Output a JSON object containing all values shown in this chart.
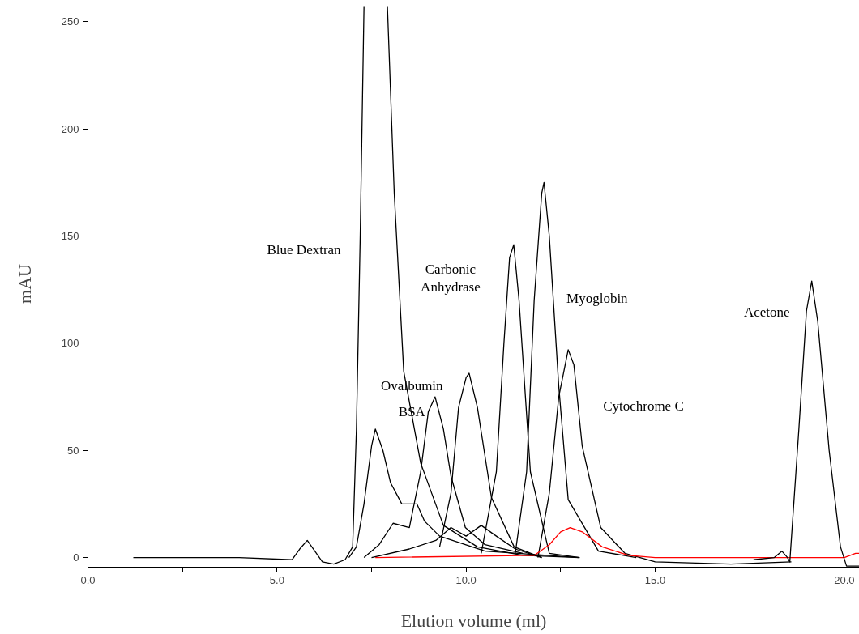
{
  "chart_data": {
    "type": "line",
    "xlabel": "Elution volume (ml)",
    "ylabel": "mAU",
    "xlim": [
      0,
      20.4
    ],
    "ylim": [
      -4.5,
      260
    ],
    "xticks": [
      {
        "value": 0,
        "label": "0.0"
      },
      {
        "value": 2.5,
        "label": null
      },
      {
        "value": 5,
        "label": "5.0"
      },
      {
        "value": 7.5,
        "label": null
      },
      {
        "value": 10,
        "label": "10.0"
      },
      {
        "value": 12.5,
        "label": null
      },
      {
        "value": 15,
        "label": "15.0"
      },
      {
        "value": 17.5,
        "label": null
      },
      {
        "value": 20,
        "label": "20.0"
      }
    ],
    "yticks": [
      0,
      50,
      100,
      150,
      200,
      250
    ],
    "grid": false,
    "marker": "none",
    "line_style": "solid",
    "series": [
      {
        "color": "#000000",
        "x": [
          1.2,
          4.0,
          5.4,
          5.6,
          5.8,
          6.0,
          6.2,
          6.5,
          6.8,
          7.0,
          7.1,
          7.2,
          7.3,
          7.5,
          7.8,
          7.92,
          8.1,
          8.35,
          8.8,
          9.4,
          10.3,
          11.5,
          13.0
        ],
        "values": [
          0,
          0,
          -1,
          4,
          8,
          3,
          -2,
          -3,
          -1,
          5,
          60,
          150,
          257,
          null,
          null,
          257,
          170,
          87,
          44,
          15,
          5,
          1,
          0
        ]
      },
      {
        "color": "#000000",
        "x": [
          6.9,
          7.1,
          7.3,
          7.5,
          7.6,
          7.8,
          8.0,
          8.3,
          8.7,
          8.9,
          9.3,
          10.5,
          13.0
        ],
        "values": [
          0,
          5,
          25,
          52,
          60,
          50,
          35,
          25,
          25,
          17,
          10,
          3,
          0
        ]
      },
      {
        "color": "#000000",
        "x": [
          7.3,
          7.7,
          8.07,
          8.5,
          8.8,
          9.0,
          9.18,
          9.4,
          9.6,
          9.98,
          10.5,
          11.5
        ],
        "values": [
          0,
          6,
          16,
          14,
          40,
          68,
          75,
          60,
          38,
          14,
          6,
          2
        ]
      },
      {
        "color": "#000000",
        "x": [
          9.3,
          9.6,
          9.8,
          10.0,
          10.08,
          10.3,
          10.67,
          11.27,
          12.0
        ],
        "values": [
          5,
          30,
          70,
          84,
          86,
          70,
          28,
          5,
          0
        ]
      },
      {
        "color": "#000000",
        "x": [
          7.5,
          8.5,
          9.2,
          9.6,
          10.0,
          10.4,
          10.8,
          11.3,
          12.0
        ],
        "values": [
          0,
          4,
          8,
          14,
          10,
          15,
          10,
          4,
          0
        ]
      },
      {
        "color": "#000000",
        "x": [
          10.4,
          10.8,
          11.0,
          11.15,
          11.26,
          11.4,
          11.7,
          12.2,
          13.0
        ],
        "values": [
          2,
          40,
          100,
          140,
          146,
          120,
          40,
          2,
          0
        ]
      },
      {
        "color": "#000000",
        "x": [
          11.3,
          11.6,
          11.8,
          12.0,
          12.06,
          12.2,
          12.45,
          12.7,
          13.5,
          14.5
        ],
        "values": [
          2,
          40,
          120,
          170,
          175,
          150,
          80,
          27,
          3,
          0
        ]
      },
      {
        "color": "#000000",
        "x": [
          11.9,
          12.2,
          12.45,
          12.7,
          12.85,
          13.07,
          13.56,
          14.2,
          15.0,
          17.0,
          18.6
        ],
        "values": [
          0,
          30,
          75,
          97,
          90,
          52,
          14,
          2,
          -2,
          -3,
          -2
        ]
      },
      {
        "color": "#ff0000",
        "x": [
          7.6,
          11.8,
          12.2,
          12.5,
          12.75,
          13.07,
          13.6,
          14.3,
          15.0,
          18.0,
          20.0,
          20.3,
          20.4
        ],
        "values": [
          0,
          1,
          6,
          12,
          14,
          12,
          5,
          1,
          0,
          0,
          0,
          2,
          2
        ]
      },
      {
        "color": "#000000",
        "x": [
          17.6,
          18.15,
          18.35,
          18.5,
          18.56,
          18.8,
          19.0,
          19.14,
          19.3,
          19.6,
          19.9,
          20.06,
          20.4
        ],
        "values": [
          -1,
          0,
          3,
          0,
          -2,
          60,
          115,
          129,
          110,
          50,
          5,
          -4,
          -4
        ]
      }
    ],
    "annotations": [
      "Blue Dextran",
      "Carbonic\nAnhydrase",
      "Ovalbumin",
      "BSA",
      "Myoglobin",
      "Cytochrome C",
      "Acetone"
    ]
  }
}
